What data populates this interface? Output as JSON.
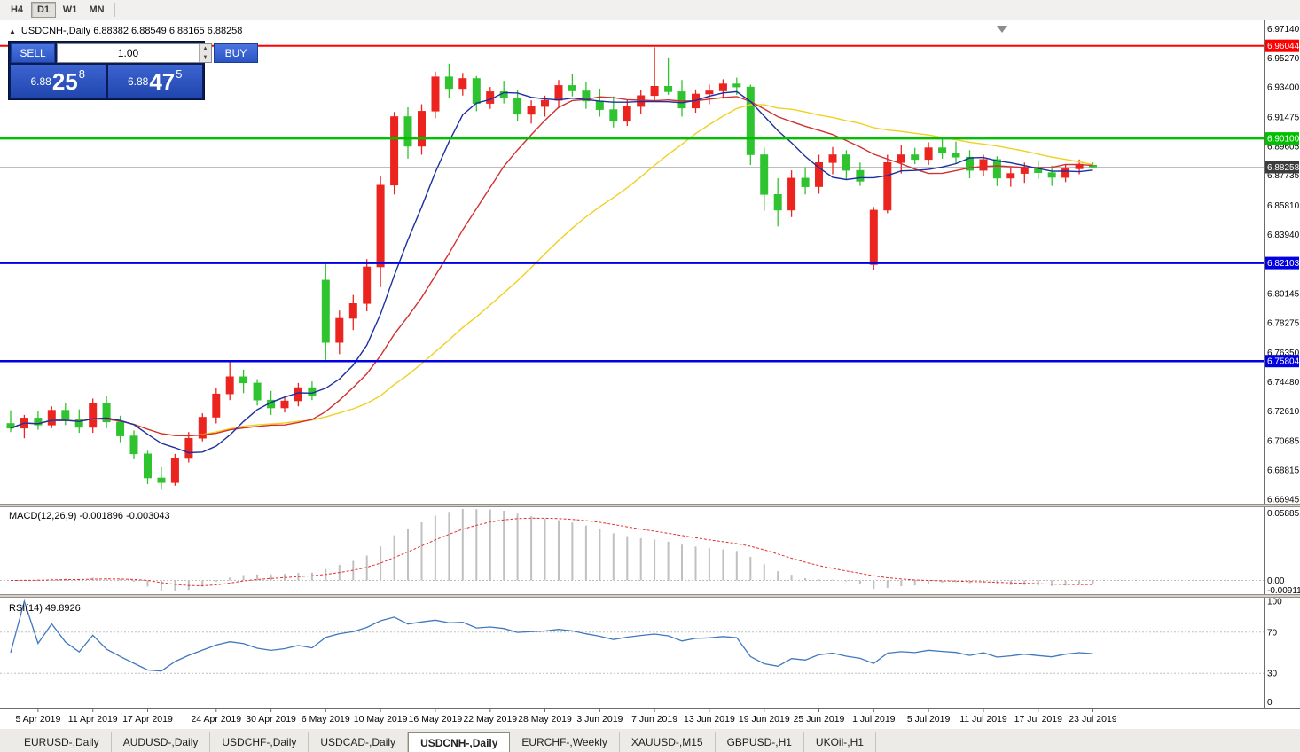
{
  "toolbar": {
    "timeframes": [
      {
        "label": "H4",
        "active": false
      },
      {
        "label": "D1",
        "active": true
      },
      {
        "label": "W1",
        "active": false
      },
      {
        "label": "MN",
        "active": false
      }
    ]
  },
  "symbol_header": {
    "one_click_arrow": "▲",
    "text": "USDCNH-,Daily 6.88382 6.88549 6.88165 6.88258"
  },
  "trade_panel": {
    "sell_label": "SELL",
    "buy_label": "BUY",
    "volume": "1.00",
    "spinner_up": "▲",
    "spinner_down": "▼",
    "sell_price": {
      "prefix": "6.88",
      "big": "25",
      "sup": "8"
    },
    "buy_price": {
      "prefix": "6.88",
      "big": "47",
      "sup": "5"
    }
  },
  "price_axis": {
    "ticks": [
      "6.97140",
      "6.95270",
      "6.93400",
      "6.91475",
      "6.89605",
      "6.87735",
      "6.85810",
      "6.83940",
      "6.80145",
      "6.78275",
      "6.76350",
      "6.74480",
      "6.72610",
      "6.70685",
      "6.68815",
      "6.66945"
    ],
    "badges": [
      {
        "value": "6.96044",
        "color": "#FF0000"
      },
      {
        "value": "6.90100",
        "color": "#00C000"
      },
      {
        "value": "6.88258",
        "color": "#3C3C3C"
      },
      {
        "value": "6.82103",
        "color": "#0000E0"
      },
      {
        "value": "6.75804",
        "color": "#0000E0"
      }
    ]
  },
  "chart_data": {
    "type": "candlestick",
    "symbol": "USDCNH-",
    "timeframe": "Daily",
    "title": "USDCNH-,Daily",
    "ohlc_current": {
      "open": "6.88382",
      "high": "6.88549",
      "low": "6.88165",
      "close": "6.88258"
    },
    "price_range": [
      6.6665,
      6.9745
    ],
    "up_color": "#EB2420",
    "down_color": "#2FC42F",
    "last_price": 6.88258,
    "candles": [
      [
        "3 Apr",
        6.718,
        6.7265,
        6.7125,
        6.715
      ],
      [
        "4 Apr",
        6.715,
        6.7235,
        6.7085,
        6.7215
      ],
      [
        "5 Apr",
        6.7215,
        6.726,
        6.714,
        6.717
      ],
      [
        "8 Apr",
        6.717,
        6.729,
        6.715,
        6.7265
      ],
      [
        "9 Apr",
        6.7265,
        6.731,
        6.717,
        6.7205
      ],
      [
        "10 Apr",
        6.7205,
        6.727,
        6.712,
        6.7155
      ],
      [
        "11 Apr",
        6.7155,
        6.734,
        6.712,
        6.731
      ],
      [
        "12 Apr",
        6.731,
        6.7355,
        6.715,
        6.719
      ],
      [
        "15 Apr",
        6.719,
        6.723,
        6.706,
        6.71
      ],
      [
        "16 Apr",
        6.71,
        6.7135,
        6.695,
        6.6985
      ],
      [
        "17 Apr",
        6.6985,
        6.7005,
        6.679,
        6.683
      ],
      [
        "18 Apr",
        6.683,
        6.69,
        6.676,
        6.68
      ],
      [
        "19 Apr",
        6.68,
        6.6985,
        6.678,
        6.6955
      ],
      [
        "22 Apr",
        6.6955,
        6.7125,
        6.693,
        6.7085
      ],
      [
        "23 Apr",
        6.7085,
        6.7245,
        6.7065,
        6.722
      ],
      [
        "24 Apr",
        6.722,
        6.7405,
        6.718,
        6.737
      ],
      [
        "25 Apr",
        6.737,
        6.758,
        6.733,
        6.748
      ],
      [
        "26 Apr",
        6.748,
        6.7525,
        6.7375,
        6.744
      ],
      [
        "29 Apr",
        6.744,
        6.7465,
        6.7295,
        6.733
      ],
      [
        "30 Apr",
        6.733,
        6.739,
        6.7235,
        6.728
      ],
      [
        "1 May",
        6.728,
        6.7355,
        6.725,
        6.7325
      ],
      [
        "2 May",
        6.7325,
        6.744,
        6.729,
        6.741
      ],
      [
        "3 May",
        6.741,
        6.745,
        6.733,
        6.736
      ],
      [
        "6 May",
        6.81,
        6.8215,
        6.758,
        6.77
      ],
      [
        "7 May",
        6.77,
        6.7905,
        6.7625,
        6.7855
      ],
      [
        "8 May",
        6.7855,
        6.8005,
        6.778,
        6.795
      ],
      [
        "9 May",
        6.795,
        6.8235,
        6.79,
        6.8185
      ],
      [
        "10 May",
        6.8185,
        6.8765,
        6.8055,
        6.871
      ],
      [
        "13 May",
        6.871,
        6.918,
        6.865,
        6.915
      ],
      [
        "14 May",
        6.915,
        6.921,
        6.888,
        6.896
      ],
      [
        "15 May",
        6.896,
        6.923,
        6.8905,
        6.9185
      ],
      [
        "16 May",
        6.9185,
        6.944,
        6.914,
        6.9405
      ],
      [
        "17 May",
        6.9405,
        6.949,
        6.927,
        6.933
      ],
      [
        "20 May",
        6.933,
        6.943,
        6.9285,
        6.9395
      ],
      [
        "21 May",
        6.9395,
        6.941,
        6.9185,
        6.9235
      ],
      [
        "22 May",
        6.9235,
        6.934,
        6.92,
        6.931
      ],
      [
        "23 May",
        6.931,
        6.938,
        6.9235,
        6.927
      ],
      [
        "24 May",
        6.927,
        6.932,
        6.912,
        6.9165
      ],
      [
        "27 May",
        6.9165,
        6.9255,
        6.9105,
        6.9215
      ],
      [
        "28 May",
        6.9215,
        6.9285,
        6.915,
        6.9255
      ],
      [
        "29 May",
        6.9255,
        6.9385,
        6.9205,
        6.935
      ],
      [
        "30 May",
        6.935,
        6.9425,
        6.928,
        6.9315
      ],
      [
        "31 May",
        6.9315,
        6.937,
        6.92,
        6.925
      ],
      [
        "3 Jun",
        6.925,
        6.933,
        6.915,
        6.9195
      ],
      [
        "4 Jun",
        6.9195,
        6.928,
        6.908,
        6.912
      ],
      [
        "5 Jun",
        6.912,
        6.9255,
        6.909,
        6.9215
      ],
      [
        "6 Jun",
        6.9215,
        6.932,
        6.917,
        6.9285
      ],
      [
        "7 Jun",
        6.9285,
        6.9595,
        6.9255,
        6.9345
      ],
      [
        "10 Jun",
        6.9345,
        6.953,
        6.929,
        6.931
      ],
      [
        "11 Jun",
        6.931,
        6.9385,
        6.915,
        6.9205
      ],
      [
        "12 Jun",
        6.9205,
        6.9325,
        6.9175,
        6.9295
      ],
      [
        "13 Jun",
        6.9295,
        6.9355,
        6.923,
        6.9315
      ],
      [
        "14 Jun",
        6.9315,
        6.939,
        6.9265,
        6.936
      ],
      [
        "17 Jun",
        6.936,
        6.94,
        6.929,
        6.934
      ],
      [
        "18 Jun",
        6.934,
        6.9355,
        6.884,
        6.8905
      ],
      [
        "19 Jun",
        6.8905,
        6.895,
        6.8545,
        6.865
      ],
      [
        "20 Jun",
        6.865,
        6.8755,
        6.8445,
        6.855
      ],
      [
        "21 Jun",
        6.855,
        6.8805,
        6.8505,
        6.8755
      ],
      [
        "24 Jun",
        6.8755,
        6.8825,
        6.865,
        6.87
      ],
      [
        "25 Jun",
        6.87,
        6.8905,
        6.8655,
        6.8855
      ],
      [
        "26 Jun",
        6.8855,
        6.8955,
        6.878,
        6.8905
      ],
      [
        "27 Jun",
        6.8905,
        6.8935,
        6.875,
        6.8805
      ],
      [
        "28 Jun",
        6.8805,
        6.8855,
        6.8705,
        6.8735
      ],
      [
        "1 Jul",
        6.82,
        6.857,
        6.8165,
        6.855
      ],
      [
        "2 Jul",
        6.855,
        6.8905,
        6.853,
        6.8855
      ],
      [
        "3 Jul",
        6.8855,
        6.8965,
        6.8785,
        6.8905
      ],
      [
        "4 Jul",
        6.8905,
        6.895,
        6.8845,
        6.8875
      ],
      [
        "5 Jul",
        6.8875,
        6.8985,
        6.884,
        6.895
      ],
      [
        "8 Jul",
        6.895,
        6.9008,
        6.888,
        6.8915
      ],
      [
        "9 Jul",
        6.8915,
        6.899,
        6.885,
        6.889
      ],
      [
        "10 Jul",
        6.889,
        6.8935,
        6.8755,
        6.8805
      ],
      [
        "11 Jul",
        6.8805,
        6.8905,
        6.8765,
        6.8875
      ],
      [
        "12 Jul",
        6.8875,
        6.8895,
        6.8705,
        6.8755
      ],
      [
        "15 Jul",
        6.8755,
        6.8825,
        6.87,
        6.8785
      ],
      [
        "16 Jul",
        6.8785,
        6.8855,
        6.8725,
        6.8825
      ],
      [
        "17 Jul",
        6.8825,
        6.8865,
        6.875,
        6.879
      ],
      [
        "18 Jul",
        6.879,
        6.8835,
        6.8705,
        6.876
      ],
      [
        "19 Jul",
        6.876,
        6.8845,
        6.873,
        6.8815
      ],
      [
        "22 Jul",
        6.8815,
        6.8875,
        6.878,
        6.8845
      ],
      [
        "23 Jul",
        6.8838,
        6.8855,
        6.8817,
        6.8826
      ]
    ],
    "date_labels": [
      [
        "5 Apr 2019",
        2
      ],
      [
        "11 Apr 2019",
        6
      ],
      [
        "17 Apr 2019",
        10
      ],
      [
        "24 Apr 2019",
        15
      ],
      [
        "30 Apr 2019",
        19
      ],
      [
        "6 May 2019",
        23
      ],
      [
        "10 May 2019",
        27
      ],
      [
        "16 May 2019",
        31
      ],
      [
        "22 May 2019",
        35
      ],
      [
        "28 May 2019",
        39
      ],
      [
        "3 Jun 2019",
        43
      ],
      [
        "7 Jun 2019",
        47
      ],
      [
        "13 Jun 2019",
        51
      ],
      [
        "19 Jun 2019",
        55
      ],
      [
        "25 Jun 2019",
        59
      ],
      [
        "1 Jul 2019",
        63
      ],
      [
        "5 Jul 2019",
        67
      ],
      [
        "11 Jul 2019",
        71
      ],
      [
        "17 Jul 2019",
        75
      ],
      [
        "23 Jul 2019",
        79
      ]
    ],
    "moving_averages": [
      {
        "period": 7,
        "color": "#1C2FA0",
        "name": "ma-fast-blue"
      },
      {
        "period": 14,
        "color": "#D23030",
        "name": "ma-mid-red"
      },
      {
        "period": 28,
        "color": "#F0D020",
        "name": "ma-slow-yellow"
      }
    ],
    "horizontal_lines": [
      {
        "price": 6.96044,
        "color": "#FF0000",
        "width": 2
      },
      {
        "price": 6.901,
        "color": "#00C000",
        "width": 2.5
      },
      {
        "price": 6.82103,
        "color": "#0000E0",
        "width": 2.5
      },
      {
        "price": 6.75804,
        "color": "#0000E0",
        "width": 2.5
      }
    ],
    "indicators": {
      "macd": {
        "label": "MACD(12,26,9)",
        "values_text": "-0.001896 -0.003043",
        "fast": 12,
        "slow": 26,
        "signal": 9,
        "scale_max": "0.058851",
        "scale_zero": "0.00",
        "scale_min": "-0.009116",
        "histogram_color": "#C0C0C0",
        "signal_color": "#E03030"
      },
      "rsi": {
        "label": "RSI(14)",
        "value_text": "49.8926",
        "period": 14,
        "levels": [
          100,
          70,
          30,
          0
        ],
        "line_color": "#4178BE"
      }
    }
  },
  "tabs": [
    {
      "label": "EURUSD-,Daily",
      "active": false
    },
    {
      "label": "AUDUSD-,Daily",
      "active": false
    },
    {
      "label": "USDCHF-,Daily",
      "active": false
    },
    {
      "label": "USDCAD-,Daily",
      "active": false
    },
    {
      "label": "USDCNH-,Daily",
      "active": true
    },
    {
      "label": "EURCHF-,Weekly",
      "active": false
    },
    {
      "label": "XAUUSD-,M15",
      "active": false
    },
    {
      "label": "GBPUSD-,H1",
      "active": false
    },
    {
      "label": "UKOil-,H1",
      "active": false
    }
  ]
}
